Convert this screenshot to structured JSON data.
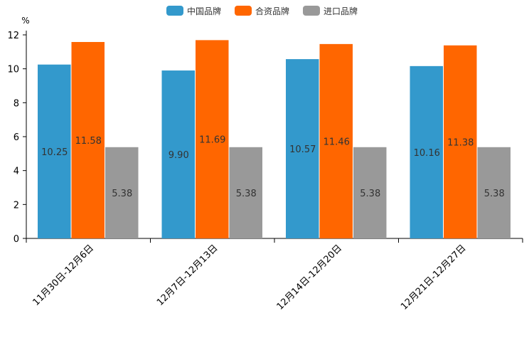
{
  "chart_data": {
    "type": "bar",
    "ylabel": "%",
    "ylim": [
      0,
      12
    ],
    "yticks": [
      0,
      2,
      4,
      6,
      8,
      10,
      12
    ],
    "legend_position": "top-center",
    "grid": false,
    "categories": [
      "11月30日-12月6日",
      "12月7日-12月13日",
      "12月14日-12月20日",
      "12月21日-12月27日"
    ],
    "series": [
      {
        "name": "中国品牌",
        "color": "#3399cc",
        "values": [
          10.25,
          9.9,
          10.57,
          10.16
        ],
        "labels": [
          "10.25",
          "9.90",
          "10.57",
          "10.16"
        ]
      },
      {
        "name": "合资品牌",
        "color": "#ff6600",
        "values": [
          11.58,
          11.69,
          11.46,
          11.38
        ],
        "labels": [
          "11.58",
          "11.69",
          "11.46",
          "11.38"
        ]
      },
      {
        "name": "进口品牌",
        "color": "#999999",
        "values": [
          5.38,
          5.38,
          5.38,
          5.38
        ],
        "labels": [
          "5.38",
          "5.38",
          "5.38",
          "5.38"
        ]
      }
    ]
  }
}
